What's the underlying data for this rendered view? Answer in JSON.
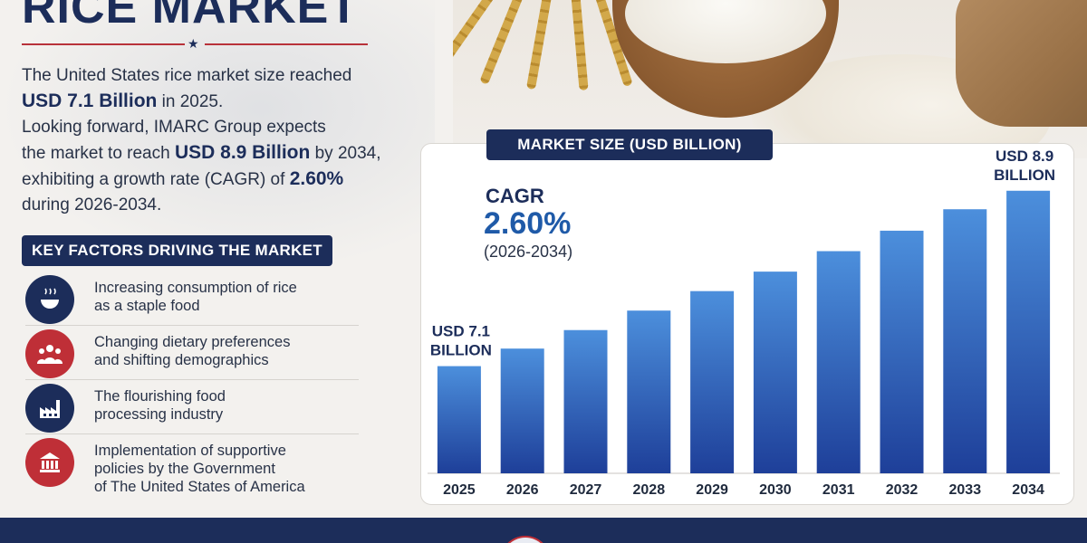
{
  "title": "RICE MARKET",
  "intro": {
    "l1": "The United States rice market size reached",
    "l2_value": "USD 7.1 Billion",
    "l2_rest": " in 2025.",
    "l3": "Looking forward, IMARC Group expects",
    "l4_pre": "the market to reach ",
    "l4_value": "USD 8.9 Billion",
    "l4_rest": " by 2034,",
    "l5_pre": "exhibiting a growth rate (CAGR) of ",
    "l5_value": "2.60%",
    "l6": "during 2026-2034."
  },
  "key_factors": {
    "header": "KEY FACTORS DRIVING THE MARKET",
    "items": [
      {
        "l1": "Increasing consumption of rice",
        "l2": "as a staple food",
        "l3": "",
        "icon": "rice-bowl-icon",
        "color": "#1c2d5a"
      },
      {
        "l1": "Changing dietary preferences",
        "l2": "and shifting demographics",
        "l3": "",
        "icon": "people-icon",
        "color": "#bf2f37"
      },
      {
        "l1": "The flourishing food",
        "l2": "processing industry",
        "l3": "",
        "icon": "factory-icon",
        "color": "#1c2d5a"
      },
      {
        "l1": "Implementation of supportive",
        "l2": "policies by the Government",
        "l3": "of The United States of America",
        "icon": "government-building-icon",
        "color": "#bf2f37"
      }
    ]
  },
  "chart_header": "MARKET SIZE (USD BILLION)",
  "cagr": {
    "label": "CAGR",
    "value": "2.60%",
    "period": "(2026-2034)"
  },
  "start_label": {
    "l1": "USD 7.1",
    "l2": "BILLION"
  },
  "end_label": {
    "l1": "USD 8.9",
    "l2": "BILLION"
  },
  "chart_data": {
    "type": "bar",
    "title": "MARKET SIZE (USD BILLION)",
    "categories": [
      "2025",
      "2026",
      "2027",
      "2028",
      "2029",
      "2030",
      "2031",
      "2032",
      "2033",
      "2034"
    ],
    "values": [
      7.1,
      7.28,
      7.47,
      7.67,
      7.87,
      8.07,
      8.28,
      8.49,
      8.71,
      8.9
    ],
    "ylim": [
      6.0,
      9.0
    ],
    "grid": false,
    "xlabel": "",
    "ylabel": "",
    "bar_color": "#2b6cc0"
  }
}
